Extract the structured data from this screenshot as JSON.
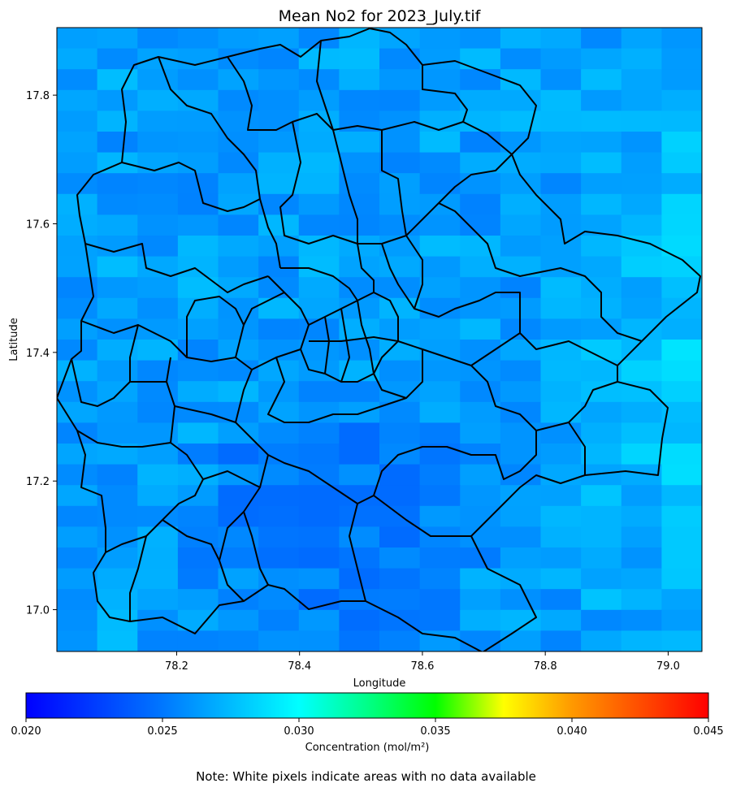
{
  "map": {
    "title": "Mean No2 for 2023_July.tif",
    "xlabel": "Longitude",
    "ylabel": "Latitude",
    "extent": {
      "lon": [
        78.005,
        79.055
      ],
      "lat": [
        16.935,
        17.905
      ]
    },
    "xticks": [
      {
        "value": 78.2,
        "label": "78.2"
      },
      {
        "value": 78.4,
        "label": "78.4"
      },
      {
        "value": 78.6,
        "label": "78.6"
      },
      {
        "value": 78.8,
        "label": "78.8"
      },
      {
        "value": 79.0,
        "label": "79.0"
      }
    ],
    "yticks": [
      {
        "value": 17.8,
        "label": "17.8"
      },
      {
        "value": 17.6,
        "label": "17.6"
      },
      {
        "value": 17.4,
        "label": "17.4"
      },
      {
        "value": 17.2,
        "label": "17.2"
      },
      {
        "value": 17.0,
        "label": "17.0"
      }
    ],
    "grid": false,
    "raster_cols": 16,
    "raster_rows": 30,
    "raster_base": 0.0265,
    "raster_range": [
      0.0245,
      0.029
    ],
    "boundary_color": "#000000"
  },
  "colorbar": {
    "label": "Concentration (mol/m²)",
    "min": 0.02,
    "max": 0.045,
    "cmap": "gist_rainbow_r (blue → cyan → green → yellow → red)",
    "stops": [
      "#0000ff",
      "#00ffff",
      "#00ff66",
      "#00ff00",
      "#ffff00",
      "#ff8800",
      "#ff0000"
    ],
    "ticks": [
      {
        "value": 0.02,
        "label": "0.020"
      },
      {
        "value": 0.025,
        "label": "0.025"
      },
      {
        "value": 0.03,
        "label": "0.030"
      },
      {
        "value": 0.035,
        "label": "0.035"
      },
      {
        "value": 0.04,
        "label": "0.040"
      },
      {
        "value": 0.045,
        "label": "0.045"
      }
    ]
  },
  "note": "Note: White pixels indicate areas with no data available"
}
